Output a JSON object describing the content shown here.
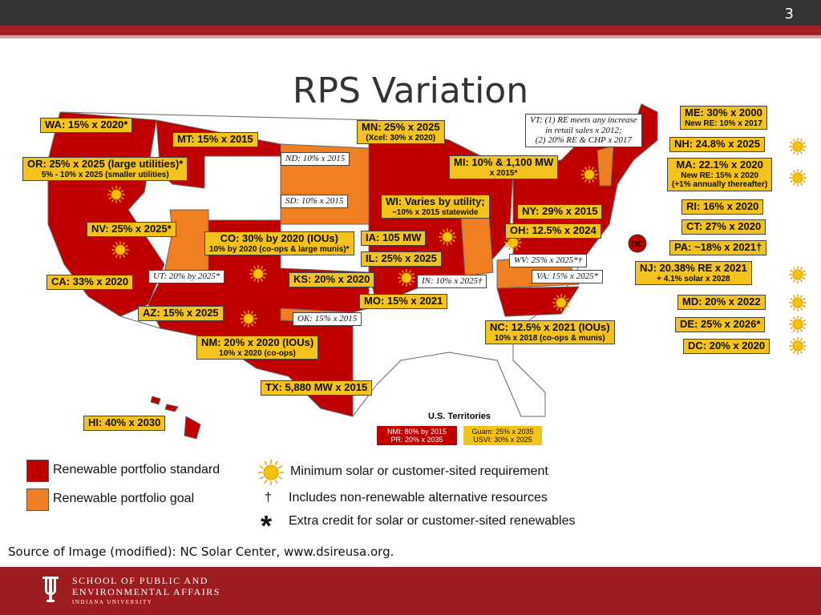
{
  "header": {
    "slide_number": "3"
  },
  "title": "RPS Variation",
  "map": {
    "standard_labels": [
      [
        "WA: 15% x 2020*"
      ],
      [
        "MT: 15% x 2015"
      ],
      [
        "OR: 25% x 2025 (large utilities)*",
        "5% - 10% x 2025 (smaller utilities)"
      ],
      [
        "MN: 25% x 2025",
        "(Xcel: 30% x 2020)"
      ],
      [
        "MI: 10% & 1,100 MW",
        "x 2015*"
      ],
      [
        "WI: Varies by utility;",
        "~10% x 2015 statewide"
      ],
      [
        "NY: 29% x 2015"
      ],
      [
        "OH: 12.5% x 2024"
      ],
      [
        "IA: 105 MW"
      ],
      [
        "IL: 25% x 2025"
      ],
      [
        "NV: 25% x 2025*"
      ],
      [
        "CO: 30% by 2020 (IOUs)",
        "10% by 2020 (co-ops & large munis)*"
      ],
      [
        "CA: 33% x 2020"
      ],
      [
        "KS: 20% x 2020"
      ],
      [
        "MO: 15% x 2021"
      ],
      [
        "AZ: 15% x 2025"
      ],
      [
        "NM: 20% x 2020 (IOUs)",
        "10% x 2020 (co-ops)"
      ],
      [
        "TX: 5,880 MW x 2015"
      ],
      [
        "NC: 12.5% x 2021 (IOUs)",
        "10% x 2018 (co-ops & munis)"
      ],
      [
        "HI: 40% x 2030"
      ],
      [
        "ME: 30% x 2000",
        "New RE: 10% x 2017"
      ],
      [
        "NH: 24.8% x 2025"
      ],
      [
        "MA: 22.1% x 2020",
        "New RE: 15% x 2020",
        "(+1% annually thereafter)"
      ],
      [
        "RI: 16% x 2020"
      ],
      [
        "CT: 27% x 2020"
      ],
      [
        "PA: ~18% x 2021†"
      ],
      [
        "NJ: 20.38% RE x 2021",
        "+ 4.1% solar x 2028"
      ],
      [
        "MD: 20% x 2022"
      ],
      [
        "DE: 25% x 2026*"
      ],
      [
        "DC: 20% x 2020"
      ]
    ],
    "note_labels": [
      [
        "VT: (1) RE meets any increase",
        "in retail sales x 2012;",
        "(2) 20% RE & CHP x 2017"
      ],
      [
        "ND: 10% x 2015"
      ],
      [
        "SD: 10% x 2015"
      ],
      [
        "UT: 20% by 2025*"
      ],
      [
        "WV: 25% x 2025*†"
      ],
      [
        "VA: 15% x 2025*"
      ],
      [
        "IN: 10% x 2025†"
      ],
      [
        "OK: 15% x 2015"
      ]
    ],
    "dc_marker": "DC",
    "territories": {
      "heading": "U.S. Territories",
      "standard": [
        "NMI: 80% by 2015",
        "PR: 20% x 2035"
      ],
      "goal": [
        "Guam: 25% x 2035",
        "USVI: 30% x 2025"
      ]
    }
  },
  "legend": [
    {
      "text": "Renewable portfolio standard"
    },
    {
      "text": "Renewable portfolio goal"
    },
    {
      "text": "Minimum solar or customer-sited requirement"
    },
    {
      "symbol": "†",
      "text": "Includes non-renewable alternative resources"
    },
    {
      "symbol": "*",
      "text": "Extra credit for solar or customer-sited renewables"
    }
  ],
  "source": "Source of Image (modified): NC Solar Center, www.dsireusa.org.",
  "footer": {
    "lines": [
      "SCHOOL OF PUBLIC AND",
      "ENVIRONMENTAL AFFAIRS",
      "INDIANA UNIVERSITY"
    ]
  }
}
